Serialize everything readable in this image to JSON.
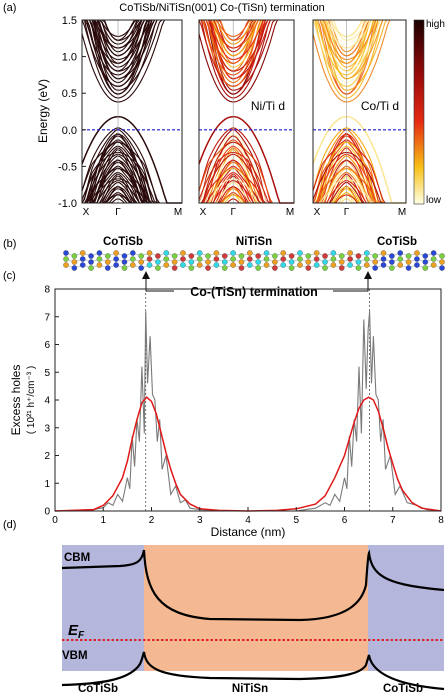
{
  "title": "CoTiSb/NiTiSn(001) Co-(TiSn) termination",
  "panel_letters": [
    "(a)",
    "(b)",
    "(c)",
    "(d)"
  ],
  "bands": {
    "ylabel": "Energy (eV)",
    "yticks": [
      "1.5",
      "1.0",
      "0.5",
      "0.0",
      "-0.5",
      "-1.0"
    ],
    "kpath": [
      "X",
      "Γ",
      "M"
    ],
    "panel_labels": [
      "",
      "Ni/Ti d",
      "Co/Ti d"
    ],
    "colorbar_high": "high",
    "colorbar_low": "low",
    "colors": {
      "band": "#2a0a0a",
      "fermi": "#1a1ad0",
      "high": "#1a0000",
      "mid": "#e02010",
      "low": "#ffffe0"
    }
  },
  "structure": {
    "labels": [
      "CoTiSb",
      "NiTiSn",
      "CoTiSb"
    ],
    "termination": "Co-(TiSn) termination",
    "atom_colors": [
      "#2a48d8",
      "#f0a020",
      "#7ad040",
      "#30d8e8",
      "#d03a3a"
    ]
  },
  "chart_data": {
    "type": "line",
    "xlabel": "Distance (nm)",
    "ylabel_line1": "Excess holes",
    "ylabel_line2": "( 10²¹ h⁺/cm⁻³ )",
    "xlim": [
      0,
      8
    ],
    "ylim": [
      0,
      8
    ],
    "xticks": [
      "0",
      "1",
      "2",
      "3",
      "4",
      "5",
      "6",
      "7",
      "8"
    ],
    "yticks": [
      "0",
      "1",
      "2",
      "3",
      "4",
      "5",
      "6",
      "7",
      "8"
    ],
    "interface_positions": [
      1.88,
      6.52
    ],
    "series": [
      {
        "color": "#7a7a7a",
        "x": [
          0,
          0.8,
          1.0,
          1.1,
          1.2,
          1.3,
          1.4,
          1.5,
          1.55,
          1.6,
          1.65,
          1.7,
          1.75,
          1.8,
          1.85,
          1.88,
          1.92,
          1.97,
          2.02,
          2.07,
          2.12,
          2.17,
          2.22,
          2.3,
          2.4,
          2.5,
          2.6,
          2.7,
          2.8,
          3.0,
          3.4,
          4.0,
          4.6,
          5.0,
          5.2,
          5.4,
          5.6,
          5.7,
          5.8,
          5.9,
          6.0,
          6.05,
          6.1,
          6.15,
          6.2,
          6.25,
          6.3,
          6.35,
          6.4,
          6.45,
          6.49,
          6.52,
          6.56,
          6.6,
          6.65,
          6.7,
          6.75,
          6.8,
          6.85,
          6.95,
          7.05,
          7.15,
          7.3,
          7.5,
          7.7,
          8.0
        ],
        "values": [
          0,
          0.05,
          0.12,
          0.3,
          0.2,
          0.6,
          0.35,
          1.2,
          0.8,
          2.7,
          1.6,
          3.3,
          2.5,
          5.2,
          2.8,
          7.2,
          4.6,
          6.3,
          4.2,
          4.0,
          2.5,
          3.3,
          1.5,
          2.0,
          0.6,
          0.9,
          0.3,
          0.4,
          0.1,
          0.05,
          0,
          0,
          0,
          0,
          0.05,
          0.1,
          0.3,
          0.2,
          0.6,
          0.35,
          1.2,
          0.8,
          2.7,
          1.6,
          3.3,
          2.5,
          5.2,
          2.8,
          6.9,
          4.4,
          6.5,
          7.2,
          4.6,
          6.3,
          4.2,
          4.0,
          2.5,
          3.3,
          1.5,
          2.0,
          0.6,
          0.9,
          0.3,
          0.2,
          0.05,
          0
        ]
      },
      {
        "color": "#e01818",
        "x": [
          0,
          0.8,
          1.0,
          1.2,
          1.4,
          1.5,
          1.6,
          1.7,
          1.8,
          1.9,
          2.0,
          2.1,
          2.2,
          2.3,
          2.4,
          2.5,
          2.6,
          2.8,
          3.0,
          3.4,
          4.0,
          4.6,
          5.0,
          5.4,
          5.6,
          5.8,
          6.0,
          6.1,
          6.2,
          6.3,
          6.4,
          6.5,
          6.6,
          6.7,
          6.8,
          6.9,
          7.0,
          7.1,
          7.2,
          7.4,
          7.6,
          8.0
        ],
        "values": [
          0,
          0.05,
          0.2,
          0.55,
          1.2,
          1.8,
          2.6,
          3.3,
          3.9,
          4.1,
          3.95,
          3.5,
          2.8,
          2.1,
          1.5,
          1.0,
          0.6,
          0.25,
          0.08,
          0.02,
          0,
          0.02,
          0.08,
          0.25,
          0.55,
          1.2,
          2.0,
          2.6,
          3.2,
          3.7,
          4.0,
          4.1,
          4.0,
          3.6,
          3.0,
          2.3,
          1.7,
          1.15,
          0.75,
          0.3,
          0.1,
          0
        ]
      }
    ]
  },
  "band_diagram": {
    "labels": [
      "CoTiSb",
      "NiTiSn",
      "CoTiSb"
    ],
    "cbm": "CBM",
    "vbm": "VBM",
    "ef": "E",
    "ef_sub": "F",
    "colors": {
      "cotisb": "#b4b6dc",
      "nitisn": "#f4b992",
      "fermi": "#e01010"
    }
  }
}
